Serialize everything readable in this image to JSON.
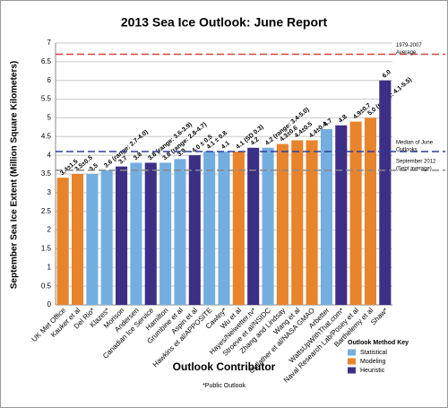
{
  "chart_data": {
    "type": "bar",
    "title": "2013 Sea Ice Outlook: June Report",
    "y_label": "September Sea Ice Extent (Million Square Kilometers)",
    "x_label": "Outlook Contributor",
    "footnote": "*Public Outlook",
    "categories": [
      "UK Met Office",
      "Kauker et al",
      "Del Rio*",
      "Klazes*",
      "Morison",
      "Andersen",
      "Canadian Ice Service",
      "Hamilton",
      "Grumbine et al",
      "Aspin et al",
      "Hawkins et al/APPOSITE",
      "Cawley*",
      "Wu et al",
      "Hayes/Neiwetter.tv*",
      "Stroeve et al/NSIDC",
      "Zhang and Lindsay",
      "Wang et al",
      "Cullather et al/NASA GMAO",
      "Arbetter",
      "WattsUpWithThat.com*",
      "Naval Research Lab/Posey et al",
      "Barthelemy et al",
      "Shaw*"
    ],
    "values": [
      3.4,
      3.5,
      3.5,
      3.6,
      3.7,
      3.8,
      3.8,
      3.8,
      3.9,
      4.0,
      4.1,
      4.1,
      4.1,
      4.2,
      4.2,
      4.3,
      4.4,
      4.4,
      4.7,
      4.8,
      4.9,
      5.0,
      6.0
    ],
    "value_labels": [
      "3.4±1.5",
      "3.5±0.5",
      "3.5",
      "3.6 (range: 2.7-4.0)",
      "3.7",
      "3.8",
      "3.8 (range: 3.6-3.9)",
      "3.8 (range: 2.8-4.7)",
      "3.9",
      "4.0 ± 0.5",
      "4.1 ± 0.8",
      "4.1",
      "4.1 (SD 0.3)",
      "4.2",
      "4.2 (range: 3.4-5.0)",
      "4.3±0.6",
      "4.4±0.5",
      "4.4±0.4",
      "4.7",
      "4.8",
      "4.9±0.7",
      "5.0 (range: 4.1-5.5)",
      "6.0"
    ],
    "colors": [
      "#e8842c",
      "#e8842c",
      "#74aee0",
      "#74aee0",
      "#3d2e86",
      "#74aee0",
      "#3d2e86",
      "#74aee0",
      "#74aee0",
      "#3d2e86",
      "#74aee0",
      "#74aee0",
      "#e8842c",
      "#3d2e86",
      "#74aee0",
      "#e8842c",
      "#e8842c",
      "#e8842c",
      "#74aee0",
      "#3d2e86",
      "#e8842c",
      "#e8842c",
      "#3d2e86"
    ],
    "ylim": [
      0,
      7
    ],
    "yticks": [
      0,
      0.5,
      1,
      1.5,
      2,
      2.5,
      3,
      3.5,
      4,
      4.5,
      5,
      5.5,
      6,
      6.5,
      7
    ],
    "grid": true,
    "reference_lines": [
      {
        "label": [
          "1979-2007",
          "Average"
        ],
        "value": 6.7,
        "color": "#d9423a"
      },
      {
        "label": [
          "Median of June",
          "Outlooks"
        ],
        "value": 4.1,
        "color": "#2a3e9c"
      },
      {
        "label": [
          "September 2012",
          "(Sept average)"
        ],
        "value": 3.6,
        "color": "#888888"
      }
    ],
    "legend": {
      "title": "Outlook Method Key",
      "items": [
        {
          "name": "Statistical",
          "color": "#74aee0"
        },
        {
          "name": "Modeling",
          "color": "#e8842c"
        },
        {
          "name": "Heuristic",
          "color": "#3d2e86"
        }
      ]
    }
  }
}
